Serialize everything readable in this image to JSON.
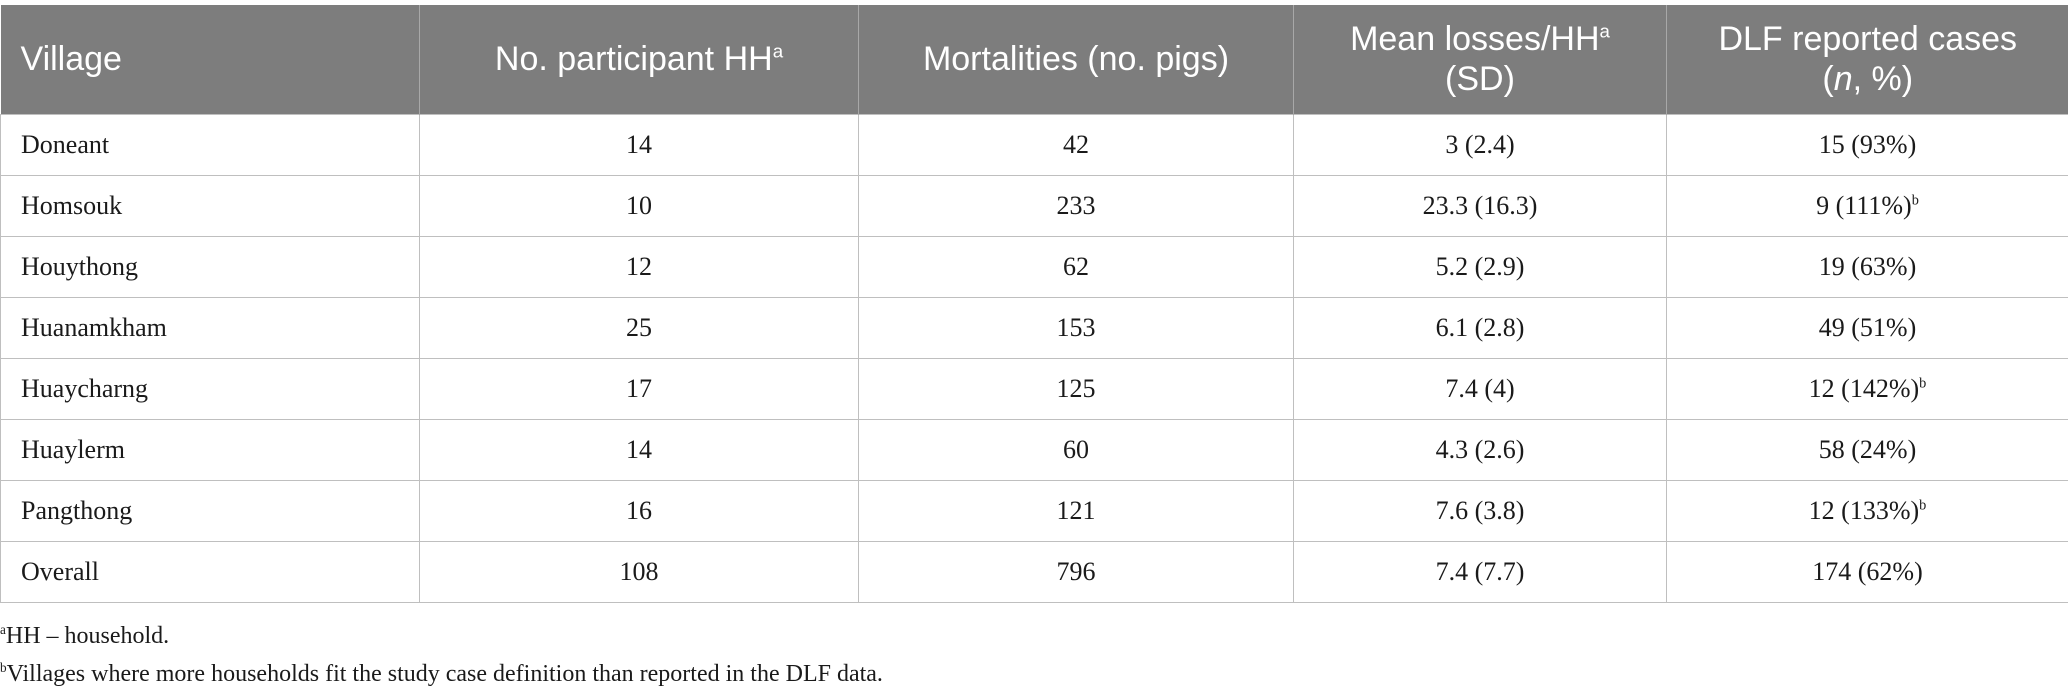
{
  "table": {
    "headers": {
      "village": "Village",
      "participants": "No. participant HH",
      "participants_sup": "a",
      "mortalities": "Mortalities (no. pigs)",
      "mean_losses_line1": "Mean losses/HH",
      "mean_losses_sup": "a",
      "mean_losses_line2": "(SD)",
      "dlf_line1": "DLF reported cases",
      "dlf_line2_open": "(",
      "dlf_line2_italic": "n",
      "dlf_line2_rest": ", %)"
    },
    "rows": [
      {
        "village": "Doneant",
        "participants": "14",
        "mortalities": "42",
        "mean_losses": "3 (2.4)",
        "dlf": "15 (93%)",
        "dlf_sup": ""
      },
      {
        "village": "Homsouk",
        "participants": "10",
        "mortalities": "233",
        "mean_losses": "23.3 (16.3)",
        "dlf": "9 (111%)",
        "dlf_sup": "b"
      },
      {
        "village": "Houythong",
        "participants": "12",
        "mortalities": "62",
        "mean_losses": "5.2 (2.9)",
        "dlf": "19 (63%)",
        "dlf_sup": ""
      },
      {
        "village": "Huanamkham",
        "participants": "25",
        "mortalities": "153",
        "mean_losses": "6.1 (2.8)",
        "dlf": "49 (51%)",
        "dlf_sup": ""
      },
      {
        "village": "Huaycharng",
        "participants": "17",
        "mortalities": "125",
        "mean_losses": "7.4 (4)",
        "dlf": "12 (142%)",
        "dlf_sup": "b"
      },
      {
        "village": "Huaylerm",
        "participants": "14",
        "mortalities": "60",
        "mean_losses": "4.3 (2.6)",
        "dlf": "58 (24%)",
        "dlf_sup": ""
      },
      {
        "village": "Pangthong",
        "participants": "16",
        "mortalities": "121",
        "mean_losses": "7.6 (3.8)",
        "dlf": "12 (133%)",
        "dlf_sup": "b"
      },
      {
        "village": "Overall",
        "participants": "108",
        "mortalities": "796",
        "mean_losses": "7.4 (7.7)",
        "dlf": "174 (62%)",
        "dlf_sup": ""
      }
    ]
  },
  "footnotes": [
    {
      "mark": "a",
      "text": "HH – household."
    },
    {
      "mark": "b",
      "text": "Villages where more households fit the study case definition than reported in the DLF data."
    }
  ],
  "colors": {
    "header_background": "#7d7d7d",
    "header_text": "#ffffff",
    "grid_line": "#bfbfbf"
  }
}
